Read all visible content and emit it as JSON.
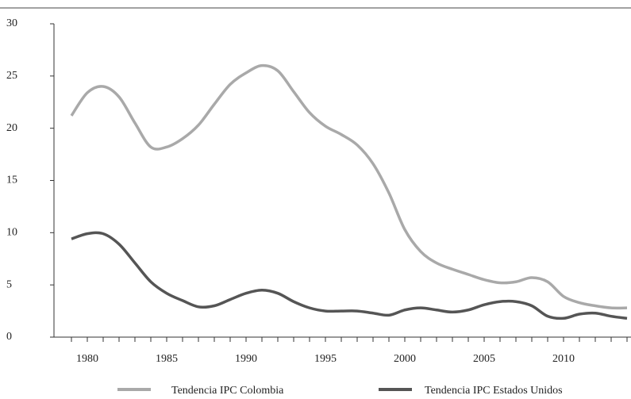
{
  "chart_data": {
    "type": "line",
    "x": [
      1979,
      1980,
      1981,
      1982,
      1983,
      1984,
      1985,
      1986,
      1987,
      1988,
      1989,
      1990,
      1991,
      1992,
      1993,
      1994,
      1995,
      1996,
      1997,
      1998,
      1999,
      2000,
      2001,
      2002,
      2003,
      2004,
      2005,
      2006,
      2007,
      2008,
      2009,
      2010,
      2011,
      2012,
      2013,
      2014
    ],
    "series": [
      {
        "name": "Tendencia IPC Colombia",
        "color": "#a9a9a9",
        "values": [
          21.2,
          23.4,
          24.0,
          23.0,
          20.5,
          18.2,
          18.2,
          19.0,
          20.3,
          22.3,
          24.2,
          25.3,
          26.0,
          25.5,
          23.5,
          21.5,
          20.2,
          19.4,
          18.4,
          16.6,
          13.8,
          10.3,
          8.2,
          7.1,
          6.5,
          6.0,
          5.5,
          5.2,
          5.3,
          5.7,
          5.3,
          3.9,
          3.3,
          3.0,
          2.8,
          2.8
        ]
      },
      {
        "name": "Tendencia IPC Estados Unidos",
        "color": "#555555",
        "values": [
          9.4,
          9.9,
          9.9,
          8.9,
          7.1,
          5.3,
          4.2,
          3.5,
          2.9,
          3.0,
          3.6,
          4.2,
          4.5,
          4.2,
          3.4,
          2.8,
          2.5,
          2.5,
          2.5,
          2.3,
          2.1,
          2.6,
          2.8,
          2.6,
          2.4,
          2.6,
          3.1,
          3.4,
          3.4,
          3.0,
          2.0,
          1.8,
          2.2,
          2.3,
          2.0,
          1.8
        ]
      }
    ],
    "xlim": [
      1978,
      2014.25
    ],
    "xticks": [
      1980,
      1985,
      1990,
      1995,
      2000,
      2005,
      2010
    ],
    "ylim": [
      0,
      30
    ],
    "yticks": [
      0,
      5,
      10,
      15,
      20,
      25,
      30
    ]
  }
}
